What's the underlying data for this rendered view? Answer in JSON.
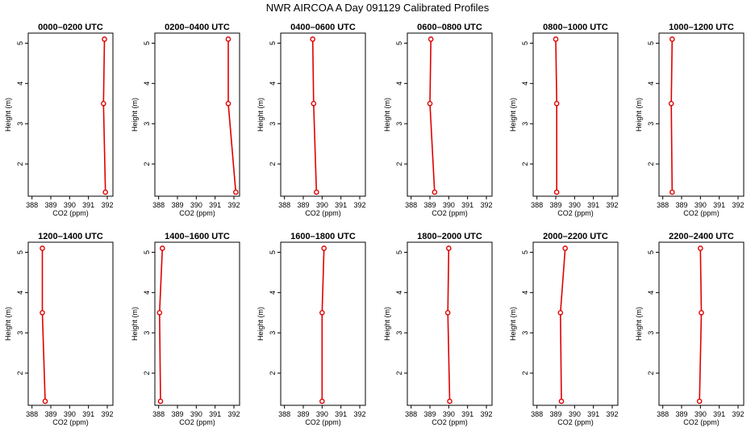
{
  "figure": {
    "title": "NWR AIRCOA A  Day 091129  Calibrated Profiles",
    "series_color": "#e00000"
  },
  "chart_data": [
    {
      "type": "line",
      "title": "0000–0200 UTC",
      "xlabel": "CO2 (ppm)",
      "ylabel": "Height (m)",
      "xlim": [
        387.8,
        392.3
      ],
      "ylim": [
        1.2,
        5.25
      ],
      "xticks": [
        388,
        389,
        390,
        391,
        392
      ],
      "yticks": [
        2,
        3,
        4,
        5
      ],
      "grid": false,
      "x": [
        391.9,
        391.8,
        391.85
      ],
      "y": [
        1.3,
        3.5,
        5.1
      ]
    },
    {
      "type": "line",
      "title": "0200–0400 UTC",
      "xlabel": "CO2 (ppm)",
      "ylabel": "Height (m)",
      "xlim": [
        387.8,
        392.3
      ],
      "ylim": [
        1.2,
        5.25
      ],
      "xticks": [
        388,
        389,
        390,
        391,
        392
      ],
      "yticks": [
        2,
        3,
        4,
        5
      ],
      "grid": false,
      "x": [
        392.1,
        391.7,
        391.7
      ],
      "y": [
        1.3,
        3.5,
        5.1
      ]
    },
    {
      "type": "line",
      "title": "0400–0600 UTC",
      "xlabel": "CO2 (ppm)",
      "ylabel": "Height (m)",
      "xlim": [
        387.8,
        392.3
      ],
      "ylim": [
        1.2,
        5.25
      ],
      "xticks": [
        388,
        389,
        390,
        391,
        392
      ],
      "yticks": [
        2,
        3,
        4,
        5
      ],
      "grid": false,
      "x": [
        389.7,
        389.55,
        389.5
      ],
      "y": [
        1.3,
        3.5,
        5.1
      ]
    },
    {
      "type": "line",
      "title": "0600–0800 UTC",
      "xlabel": "CO2 (ppm)",
      "ylabel": "Height (m)",
      "xlim": [
        387.8,
        392.3
      ],
      "ylim": [
        1.2,
        5.25
      ],
      "xticks": [
        388,
        389,
        390,
        391,
        392
      ],
      "yticks": [
        2,
        3,
        4,
        5
      ],
      "grid": false,
      "x": [
        389.25,
        389.0,
        389.05
      ],
      "y": [
        1.3,
        3.5,
        5.1
      ]
    },
    {
      "type": "line",
      "title": "0800–1000 UTC",
      "xlabel": "CO2 (ppm)",
      "ylabel": "Height (m)",
      "xlim": [
        387.8,
        392.3
      ],
      "ylim": [
        1.2,
        5.25
      ],
      "xticks": [
        388,
        389,
        390,
        391,
        392
      ],
      "yticks": [
        2,
        3,
        4,
        5
      ],
      "grid": false,
      "x": [
        389.05,
        389.05,
        389.0
      ],
      "y": [
        1.3,
        3.5,
        5.1
      ]
    },
    {
      "type": "line",
      "title": "1000–1200 UTC",
      "xlabel": "CO2 (ppm)",
      "ylabel": "Height (m)",
      "xlim": [
        387.8,
        392.3
      ],
      "ylim": [
        1.2,
        5.25
      ],
      "xticks": [
        388,
        389,
        390,
        391,
        392
      ],
      "yticks": [
        2,
        3,
        4,
        5
      ],
      "grid": false,
      "x": [
        388.5,
        388.45,
        388.5
      ],
      "y": [
        1.3,
        3.5,
        5.1
      ]
    },
    {
      "type": "line",
      "title": "1200–1400 UTC",
      "xlabel": "CO2 (ppm)",
      "ylabel": "Height (m)",
      "xlim": [
        387.8,
        392.3
      ],
      "ylim": [
        1.2,
        5.25
      ],
      "xticks": [
        388,
        389,
        390,
        391,
        392
      ],
      "yticks": [
        2,
        3,
        4,
        5
      ],
      "grid": false,
      "x": [
        388.7,
        388.55,
        388.55
      ],
      "y": [
        1.3,
        3.5,
        5.1
      ]
    },
    {
      "type": "line",
      "title": "1400–1600 UTC",
      "xlabel": "CO2 (ppm)",
      "ylabel": "Height (m)",
      "xlim": [
        387.8,
        392.3
      ],
      "ylim": [
        1.2,
        5.25
      ],
      "xticks": [
        388,
        389,
        390,
        391,
        392
      ],
      "yticks": [
        2,
        3,
        4,
        5
      ],
      "grid": false,
      "x": [
        388.1,
        388.05,
        388.2
      ],
      "y": [
        1.3,
        3.5,
        5.1
      ]
    },
    {
      "type": "line",
      "title": "1600–1800 UTC",
      "xlabel": "CO2 (ppm)",
      "ylabel": "Height (m)",
      "xlim": [
        387.8,
        392.3
      ],
      "ylim": [
        1.2,
        5.25
      ],
      "xticks": [
        388,
        389,
        390,
        391,
        392
      ],
      "yticks": [
        2,
        3,
        4,
        5
      ],
      "grid": false,
      "x": [
        390.0,
        390.0,
        390.1
      ],
      "y": [
        1.3,
        3.5,
        5.1
      ]
    },
    {
      "type": "line",
      "title": "1800–2000 UTC",
      "xlabel": "CO2 (ppm)",
      "ylabel": "Height (m)",
      "xlim": [
        387.8,
        392.3
      ],
      "ylim": [
        1.2,
        5.25
      ],
      "xticks": [
        388,
        389,
        390,
        391,
        392
      ],
      "yticks": [
        2,
        3,
        4,
        5
      ],
      "grid": false,
      "x": [
        390.05,
        389.95,
        390.0
      ],
      "y": [
        1.3,
        3.5,
        5.1
      ]
    },
    {
      "type": "line",
      "title": "2000–2200 UTC",
      "xlabel": "CO2 (ppm)",
      "ylabel": "Height (m)",
      "xlim": [
        387.8,
        392.3
      ],
      "ylim": [
        1.2,
        5.25
      ],
      "xticks": [
        388,
        389,
        390,
        391,
        392
      ],
      "yticks": [
        2,
        3,
        4,
        5
      ],
      "grid": false,
      "x": [
        389.3,
        389.25,
        389.5
      ],
      "y": [
        1.3,
        3.5,
        5.1
      ]
    },
    {
      "type": "line",
      "title": "2200–2400 UTC",
      "xlabel": "CO2 (ppm)",
      "ylabel": "Height (m)",
      "xlim": [
        387.8,
        392.3
      ],
      "ylim": [
        1.2,
        5.25
      ],
      "xticks": [
        388,
        389,
        390,
        391,
        392
      ],
      "yticks": [
        2,
        3,
        4,
        5
      ],
      "grid": false,
      "x": [
        389.95,
        390.05,
        390.0
      ],
      "y": [
        1.3,
        3.5,
        5.1
      ]
    }
  ]
}
